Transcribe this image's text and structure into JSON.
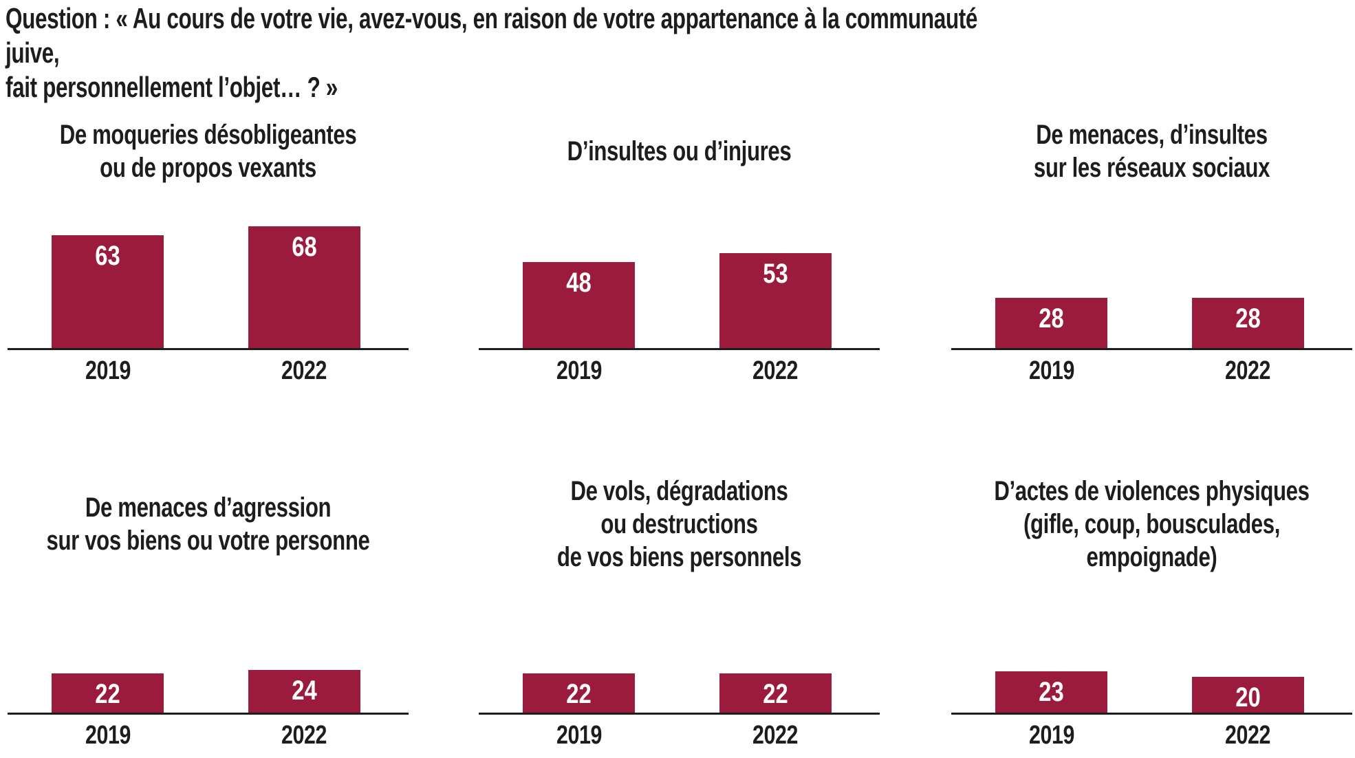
{
  "question": {
    "text": "Question : « Au cours de votre vie, avez-vous, en raison de votre appartenance à la communauté juive,\nfait personnellement l’objet… ? »"
  },
  "colors": {
    "bar": "#9b1b3c",
    "text": "#1d1d1b",
    "value_label": "#ffffff",
    "background": "#ffffff"
  },
  "chart_data": [
    {
      "type": "bar",
      "title": "De moqueries désobligeantes\nou de propos vexants",
      "categories": [
        "2019",
        "2022"
      ],
      "values": [
        63,
        68
      ],
      "value_labels": [
        "63",
        "68"
      ],
      "bar_color": "#9b1b3c",
      "value_label_position": "inside-top",
      "grid": "off",
      "legend": "none"
    },
    {
      "type": "bar",
      "title": "D’insultes ou d’injures",
      "categories": [
        "2019",
        "2022"
      ],
      "values": [
        48,
        53
      ],
      "value_labels": [
        "48",
        "53"
      ],
      "bar_color": "#9b1b3c",
      "value_label_position": "inside-top",
      "grid": "off",
      "legend": "none"
    },
    {
      "type": "bar",
      "title": "De menaces, d’insultes\nsur les réseaux sociaux",
      "categories": [
        "2019",
        "2022"
      ],
      "values": [
        28,
        28
      ],
      "value_labels": [
        "28",
        "28"
      ],
      "bar_color": "#9b1b3c",
      "value_label_position": "inside-top",
      "grid": "off",
      "legend": "none"
    },
    {
      "type": "bar",
      "title": "De menaces d’agression\nsur vos biens ou votre personne",
      "categories": [
        "2019",
        "2022"
      ],
      "values": [
        22,
        24
      ],
      "value_labels": [
        "22",
        "24"
      ],
      "bar_color": "#9b1b3c",
      "value_label_position": "inside-top",
      "grid": "off",
      "legend": "none"
    },
    {
      "type": "bar",
      "title": "De vols, dégradations\nou destructions\nde vos biens personnels",
      "categories": [
        "2019",
        "2022"
      ],
      "values": [
        22,
        22
      ],
      "value_labels": [
        "22",
        "22"
      ],
      "bar_color": "#9b1b3c",
      "value_label_position": "inside-top",
      "grid": "off",
      "legend": "none"
    },
    {
      "type": "bar",
      "title": "D’actes de violences physiques\n(gifle, coup, bousculades,\nempoignade)",
      "categories": [
        "2019",
        "2022"
      ],
      "values": [
        23,
        20
      ],
      "value_labels": [
        "23",
        "20"
      ],
      "bar_color": "#9b1b3c",
      "value_label_position": "inside-top",
      "grid": "off",
      "legend": "none"
    }
  ]
}
